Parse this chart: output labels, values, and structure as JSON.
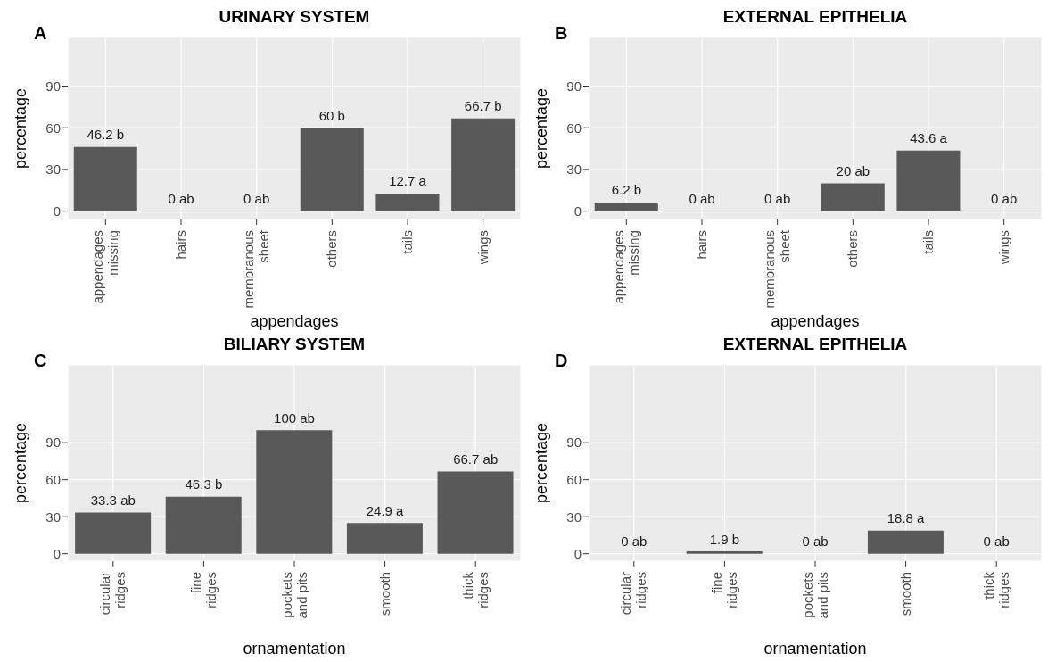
{
  "chart_data": [
    {
      "type": "bar",
      "title": "URINARY SYSTEM",
      "annotations": [
        "A"
      ],
      "xlabel": "appendages",
      "ylabel": "percentage",
      "categories": [
        "appendages missing",
        "hairs",
        "membranous sheet",
        "others",
        "tails",
        "wings"
      ],
      "values": [
        46.2,
        0,
        0,
        60,
        12.7,
        66.7
      ],
      "value_labels": [
        "46.2 b",
        "0 ab",
        "0 ab",
        "60 b",
        "12.7 a",
        "66.7 b"
      ],
      "color": "#595959",
      "ylim": [
        -6,
        125
      ],
      "yticks": [
        0,
        30,
        60,
        90
      ],
      "grid": true
    },
    {
      "type": "bar",
      "title": "EXTERNAL EPITHELIA",
      "annotations": [
        "B"
      ],
      "xlabel": "appendages",
      "ylabel": "percentage",
      "categories": [
        "appendages missing",
        "hairs",
        "membranous sheet",
        "others",
        "tails",
        "wings"
      ],
      "values": [
        6.2,
        0,
        0,
        20,
        43.6,
        0
      ],
      "value_labels": [
        "6.2 b",
        "0 ab",
        "0 ab",
        "20 ab",
        "43.6 a",
        "0 ab"
      ],
      "color": "#595959",
      "ylim": [
        -6,
        125
      ],
      "yticks": [
        0,
        30,
        60,
        90
      ],
      "grid": true
    },
    {
      "type": "bar",
      "title": "BILIARY SYSTEM",
      "annotations": [
        "C"
      ],
      "xlabel": "ornamentation",
      "ylabel": "percentage",
      "categories": [
        "circular ridges",
        "fine ridges",
        "pockets and pits",
        "smooth",
        "thick ridges"
      ],
      "values": [
        33.3,
        46.3,
        100,
        24.9,
        66.7
      ],
      "value_labels": [
        "33.3 ab",
        "46.3 b",
        "100 ab",
        "24.9 a",
        "66.7 ab"
      ],
      "color": "#595959",
      "ylim": [
        -6,
        153
      ],
      "yticks": [
        0,
        30,
        60,
        90
      ],
      "grid": true
    },
    {
      "type": "bar",
      "title": "EXTERNAL EPITHELIA",
      "annotations": [
        "D"
      ],
      "xlabel": "ornamentation",
      "ylabel": "percentage",
      "categories": [
        "circular ridges",
        "fine ridges",
        "pockets and pits",
        "smooth",
        "thick ridges"
      ],
      "values": [
        0,
        1.9,
        0,
        18.8,
        0
      ],
      "value_labels": [
        "0 ab",
        "1.9 b",
        "0 ab",
        "18.8 a",
        "0 ab"
      ],
      "color": "#595959",
      "ylim": [
        -6,
        153
      ],
      "yticks": [
        0,
        30,
        60,
        90
      ],
      "grid": true
    }
  ]
}
